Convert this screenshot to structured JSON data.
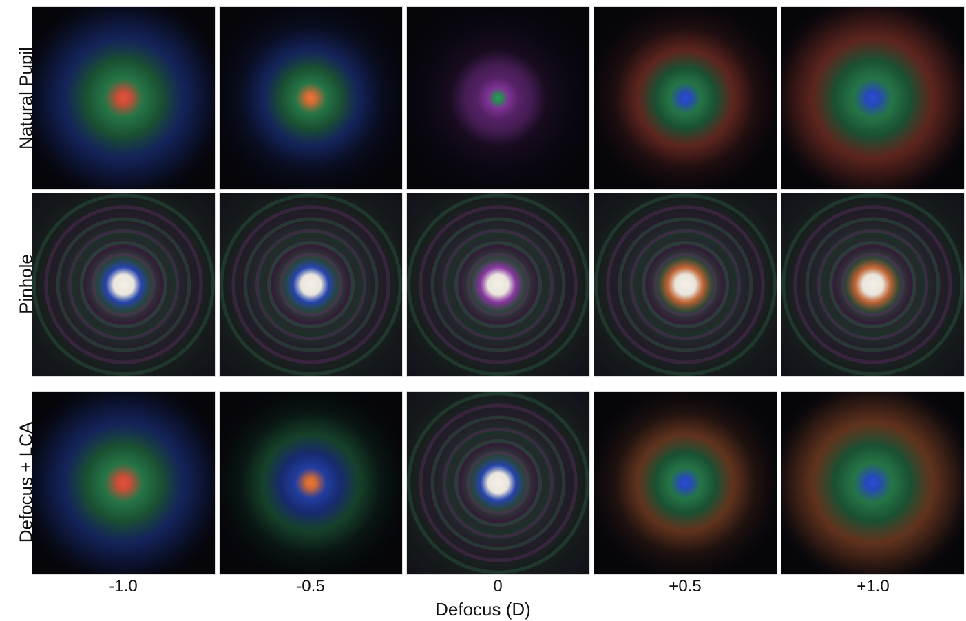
{
  "rows": [
    {
      "label": "Natural Pupil",
      "kind": "natural"
    },
    {
      "label": "Pinhole",
      "kind": "pinhole"
    },
    {
      "label": "Defocus + LCA",
      "kind": "lca"
    }
  ],
  "columns": [
    "-1.0",
    "-0.5",
    "0",
    "+0.5",
    "+1.0"
  ],
  "x_axis_label": "Defocus (D)",
  "colors": {
    "red": "#e0543c",
    "green": "#2f9a5a",
    "blue": "#2a4fd0",
    "magenta": "#a43fc0",
    "white": "#f4f0e6",
    "background": "#05050a"
  },
  "tiles": [
    [
      {
        "center": "red",
        "ring1": "green",
        "halo": "blue",
        "spread": "large"
      },
      {
        "center": "orange",
        "ring1": "green",
        "halo": "blue",
        "spread": "medium"
      },
      {
        "center": "green",
        "ring1": "magenta",
        "halo": "magenta",
        "spread": "small"
      },
      {
        "center": "blue",
        "ring1": "green",
        "halo": "red",
        "spread": "medium"
      },
      {
        "center": "blue",
        "ring1": "green",
        "halo": "red",
        "spread": "large"
      }
    ],
    [
      {
        "center": "white",
        "ring1": "blue",
        "halo": "rainbow",
        "spread": "rings"
      },
      {
        "center": "white",
        "ring1": "blue",
        "halo": "rainbow",
        "spread": "rings"
      },
      {
        "center": "white",
        "ring1": "magenta",
        "halo": "rainbow",
        "spread": "rings"
      },
      {
        "center": "white",
        "ring1": "orange",
        "halo": "rainbow",
        "spread": "rings"
      },
      {
        "center": "white",
        "ring1": "orange",
        "halo": "rainbow",
        "spread": "rings"
      }
    ],
    [
      {
        "center": "red",
        "ring1": "green",
        "halo": "blue",
        "spread": "large"
      },
      {
        "center": "orange",
        "ring1": "blue",
        "halo": "green",
        "spread": "medium"
      },
      {
        "center": "white",
        "ring1": "blue",
        "halo": "rainbow",
        "spread": "rings"
      },
      {
        "center": "blue",
        "ring1": "green",
        "halo": "orange",
        "spread": "medium"
      },
      {
        "center": "blue",
        "ring1": "green",
        "halo": "orange",
        "spread": "large"
      }
    ]
  ]
}
